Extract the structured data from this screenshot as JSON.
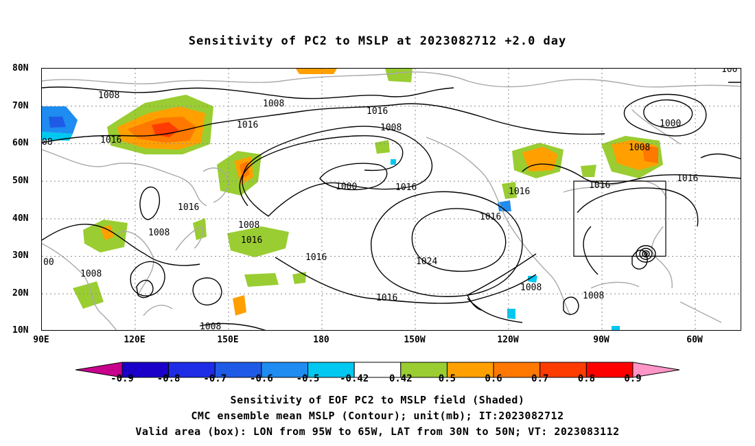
{
  "title": "Sensitivity of PC2 to MSLP at 2023082712 +2.0 day",
  "lat_labels": [
    "80N",
    "70N",
    "60N",
    "50N",
    "40N",
    "30N",
    "20N",
    "10N"
  ],
  "lon_labels": [
    "90E",
    "120E",
    "150E",
    "180",
    "150W",
    "120W",
    "90W",
    "60W"
  ],
  "contour_labels": [
    "1008",
    "1008",
    "1016",
    "1016",
    "1008",
    "1000",
    "1008",
    "1016",
    "1000",
    "1016",
    "1008",
    "1016",
    "1016",
    "1008",
    "1016",
    "1016",
    "1008",
    "1024",
    "1016",
    "1008",
    "1008",
    "1016",
    "1016",
    "1008",
    "00",
    "100",
    "08"
  ],
  "colorbar": {
    "labels": [
      "-0.9",
      "-0.8",
      "-0.7",
      "-0.6",
      "-0.5",
      "-0.42",
      "0.42",
      "0.5",
      "0.6",
      "0.7",
      "0.8",
      "0.9"
    ],
    "colors": [
      "#c8008c",
      "#1a00c8",
      "#1e2ce6",
      "#1e5ae6",
      "#1e8cf0",
      "#00c8f0",
      "#ffffff",
      "#9acd32",
      "#ffa000",
      "#ff7800",
      "#ff3c00",
      "#ff0000",
      "#ff96c8"
    ]
  },
  "captions": {
    "line1": "Sensitivity of EOF PC2 to MSLP field (Shaded)",
    "line2": "CMC ensemble mean MSLP (Contour); unit(mb); IT:2023082712",
    "line3": "Valid area (box): LON from 95W to 65W, LAT from 30N to 50N; VT: 2023083112"
  }
}
